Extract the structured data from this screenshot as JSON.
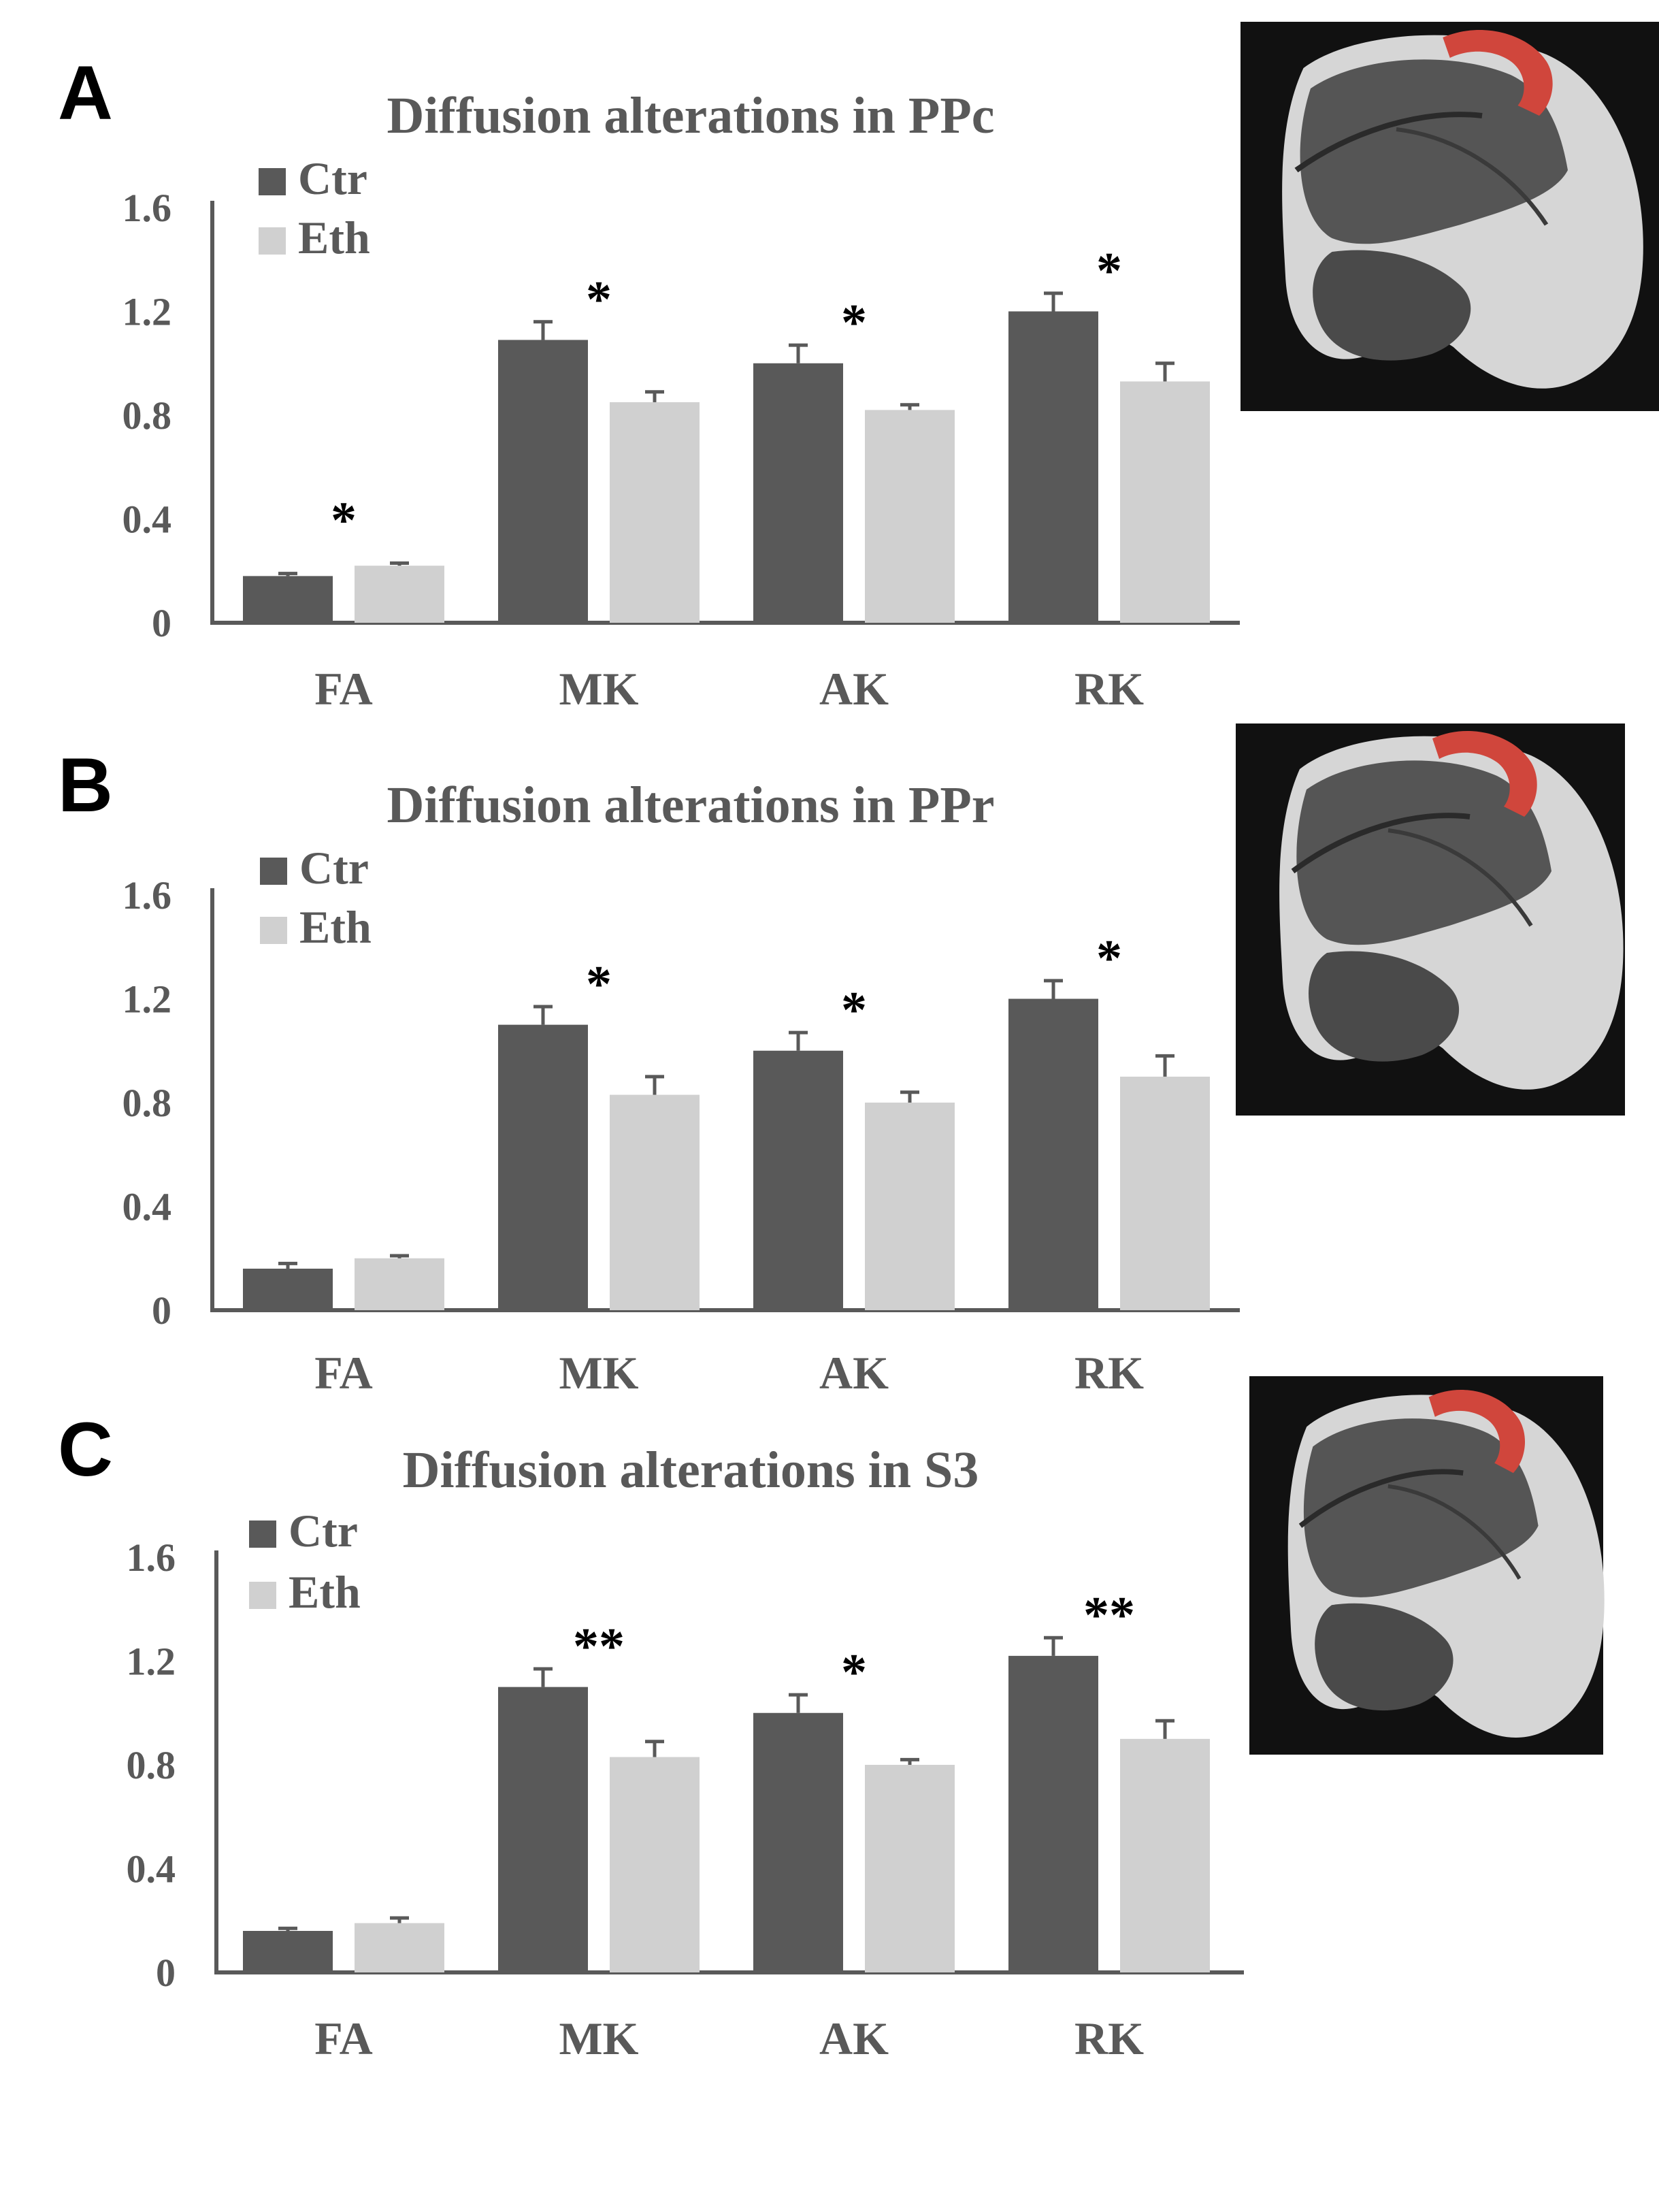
{
  "colors": {
    "ctr": "#595959",
    "eth": "#d0d0d0",
    "axis": "#595959",
    "roi": "#d0463c",
    "mri_bg": "#111111"
  },
  "chart_data": [
    {
      "type": "bar",
      "panel": "A",
      "title": "Diffusion alterations in PPc",
      "categories": [
        "FA",
        "MK",
        "AK",
        "RK"
      ],
      "series": [
        {
          "name": "Ctr",
          "values": [
            0.18,
            1.09,
            1.0,
            1.2
          ],
          "errors": [
            0.01,
            0.07,
            0.07,
            0.07
          ]
        },
        {
          "name": "Eth",
          "values": [
            0.22,
            0.85,
            0.82,
            0.93
          ],
          "errors": [
            0.01,
            0.04,
            0.02,
            0.07
          ]
        }
      ],
      "significance": [
        "*",
        "*",
        "*",
        "*"
      ],
      "yticks": [
        "0",
        "0.4",
        "0.8",
        "1.2",
        "1.6"
      ],
      "ylim": [
        0,
        1.6
      ],
      "legend": "top-left",
      "xlabel": "",
      "ylabel": ""
    },
    {
      "type": "bar",
      "panel": "B",
      "title": "Diffusion alterations in PPr",
      "categories": [
        "FA",
        "MK",
        "AK",
        "RK"
      ],
      "series": [
        {
          "name": "Ctr",
          "values": [
            0.16,
            1.1,
            1.0,
            1.2
          ],
          "errors": [
            0.02,
            0.07,
            0.07,
            0.07
          ]
        },
        {
          "name": "Eth",
          "values": [
            0.2,
            0.83,
            0.8,
            0.9
          ],
          "errors": [
            0.01,
            0.07,
            0.04,
            0.08
          ]
        }
      ],
      "significance": [
        "",
        "*",
        "*",
        "*"
      ],
      "yticks": [
        "0",
        "0.4",
        "0.8",
        "1.2",
        "1.6"
      ],
      "ylim": [
        0,
        1.6
      ],
      "legend": "top-left",
      "xlabel": "",
      "ylabel": ""
    },
    {
      "type": "bar",
      "panel": "C",
      "title": "Diffusion alterations in S3",
      "categories": [
        "FA",
        "MK",
        "AK",
        "RK"
      ],
      "series": [
        {
          "name": "Ctr",
          "values": [
            0.16,
            1.1,
            1.0,
            1.22
          ],
          "errors": [
            0.01,
            0.07,
            0.07,
            0.07
          ]
        },
        {
          "name": "Eth",
          "values": [
            0.19,
            0.83,
            0.8,
            0.9
          ],
          "errors": [
            0.02,
            0.06,
            0.02,
            0.07
          ]
        }
      ],
      "significance": [
        "",
        "**",
        "*",
        "**"
      ],
      "yticks": [
        "0",
        "0.4",
        "0.8",
        "1.2",
        "1.6"
      ],
      "ylim": [
        0,
        1.6
      ],
      "legend": "top-left",
      "xlabel": "",
      "ylabel": ""
    }
  ]
}
